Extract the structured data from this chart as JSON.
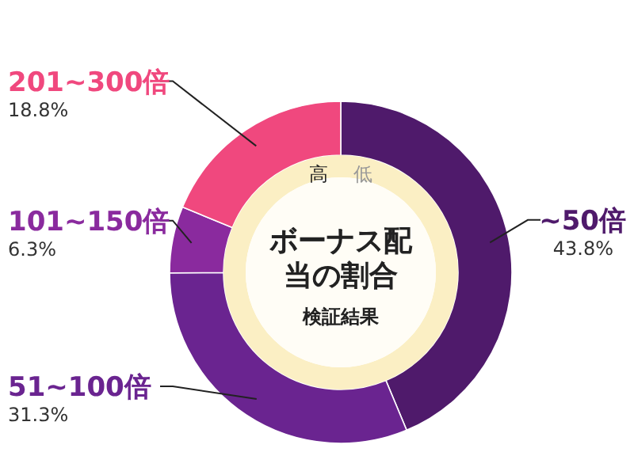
{
  "chart_data": {
    "type": "donut",
    "title": "ボーナス配当の割合",
    "subtitle": "検証結果",
    "categories": [
      "~50倍",
      "51~100倍",
      "101~150倍",
      "201~300倍"
    ],
    "values": [
      43.8,
      31.3,
      6.3,
      18.8
    ],
    "value_labels": [
      "43.8%",
      "31.3%",
      "6.3%",
      "18.8%"
    ],
    "colors": [
      "#4f1a6b",
      "#6a2490",
      "#8a2a9e",
      "#f0487e"
    ],
    "annotations": [
      "高",
      "低"
    ]
  }
}
